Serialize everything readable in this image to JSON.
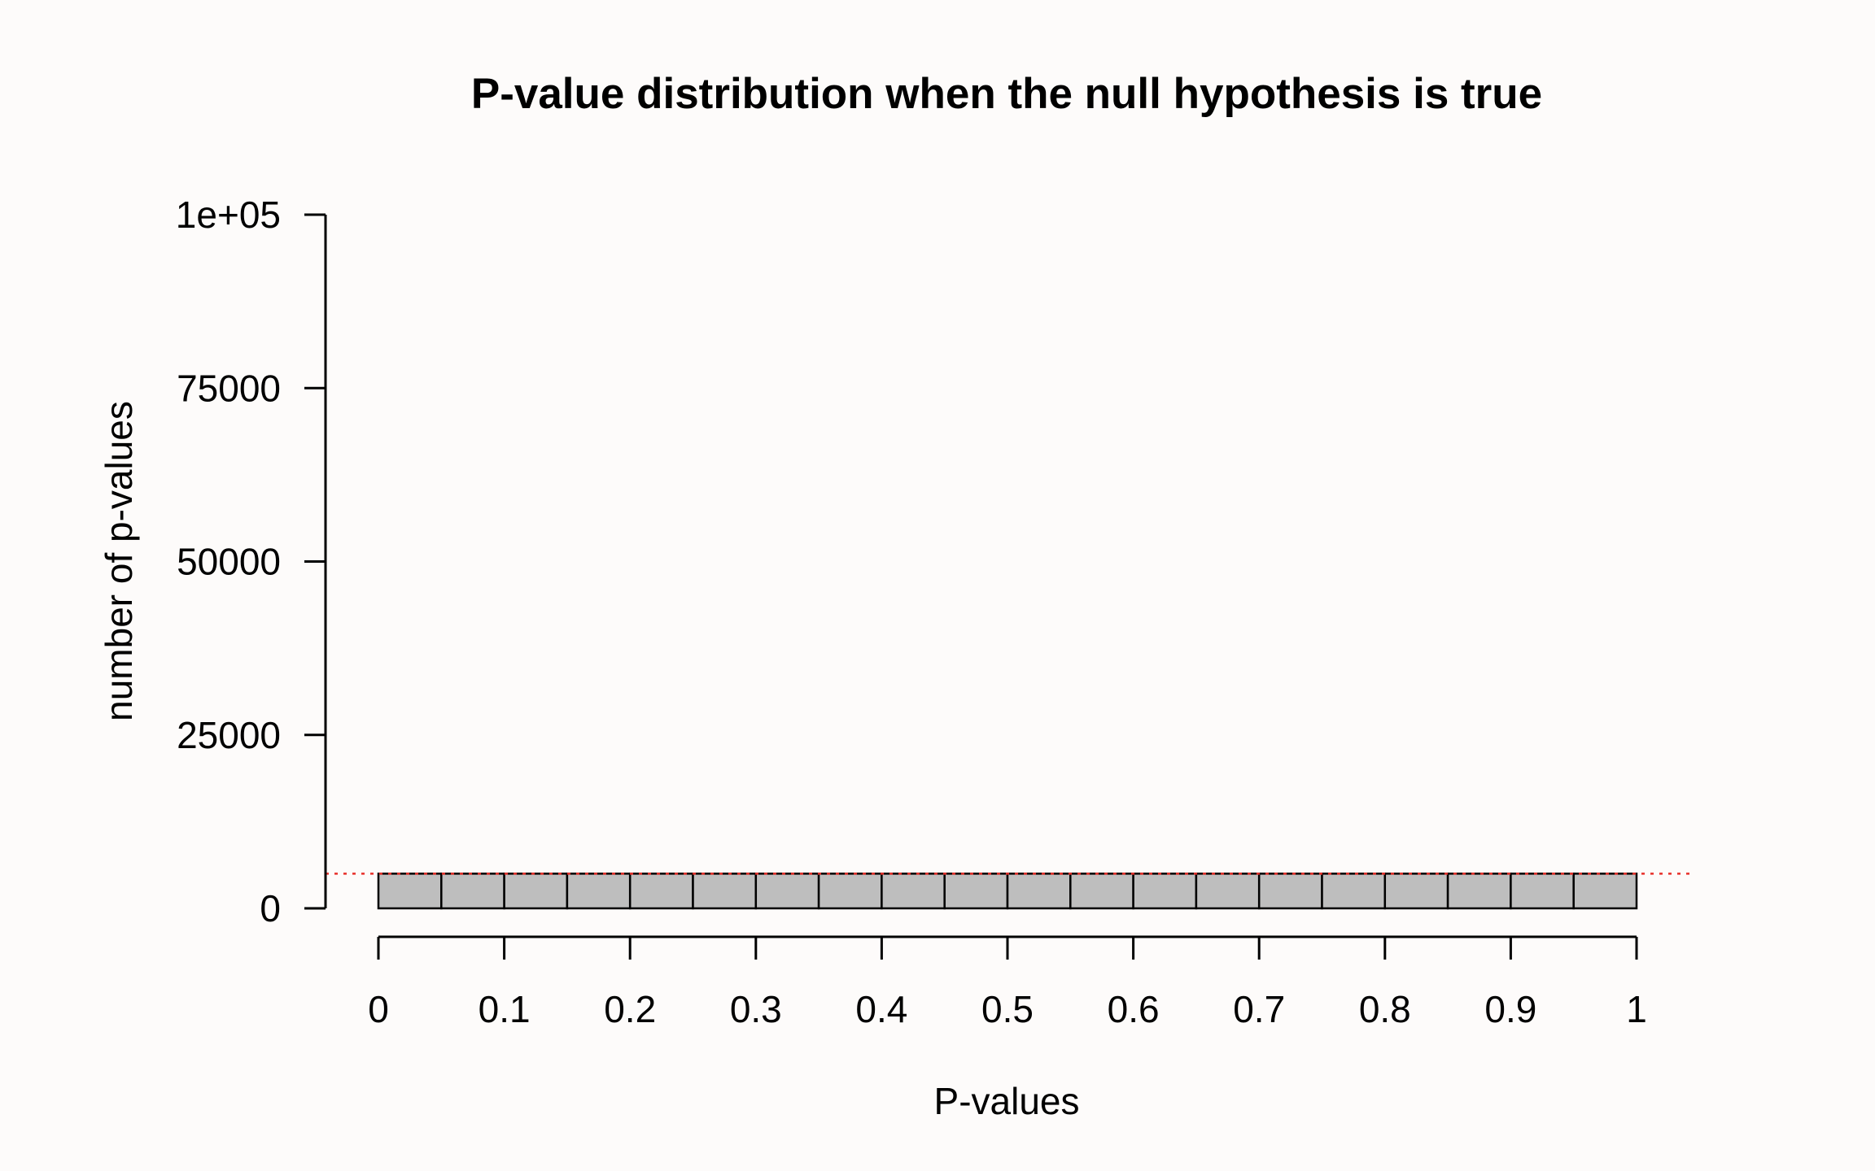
{
  "chart_data": {
    "type": "bar",
    "title": "P-value distribution when the null hypothesis is true",
    "xlabel": "P-values",
    "ylabel": "number of p-values",
    "xlim": [
      0,
      1
    ],
    "ylim": [
      0,
      100000
    ],
    "x_ticks": [
      0,
      0.1,
      0.2,
      0.3,
      0.4,
      0.5,
      0.6,
      0.7,
      0.8,
      0.9,
      1
    ],
    "x_tick_labels": [
      "0",
      "0.1",
      "0.2",
      "0.3",
      "0.4",
      "0.5",
      "0.6",
      "0.7",
      "0.8",
      "0.9",
      "1"
    ],
    "y_ticks": [
      0,
      25000,
      50000,
      75000,
      100000
    ],
    "y_tick_labels": [
      "0",
      "25000",
      "50000",
      "75000",
      "1e+05"
    ],
    "bin_edges": [
      0,
      0.05,
      0.1,
      0.15,
      0.2,
      0.25,
      0.3,
      0.35,
      0.4,
      0.45,
      0.5,
      0.55,
      0.6,
      0.65,
      0.7,
      0.75,
      0.8,
      0.85,
      0.9,
      0.95,
      1
    ],
    "values": [
      5000,
      5000,
      5000,
      5000,
      5000,
      5000,
      5000,
      5000,
      5000,
      5000,
      5000,
      5000,
      5000,
      5000,
      5000,
      5000,
      5000,
      5000,
      5000,
      5000
    ],
    "reference_line": {
      "y": 5000,
      "style": "dotted",
      "color": "#e8302a"
    },
    "bar_color": "#bebebe",
    "grid": false,
    "legend": "none"
  }
}
